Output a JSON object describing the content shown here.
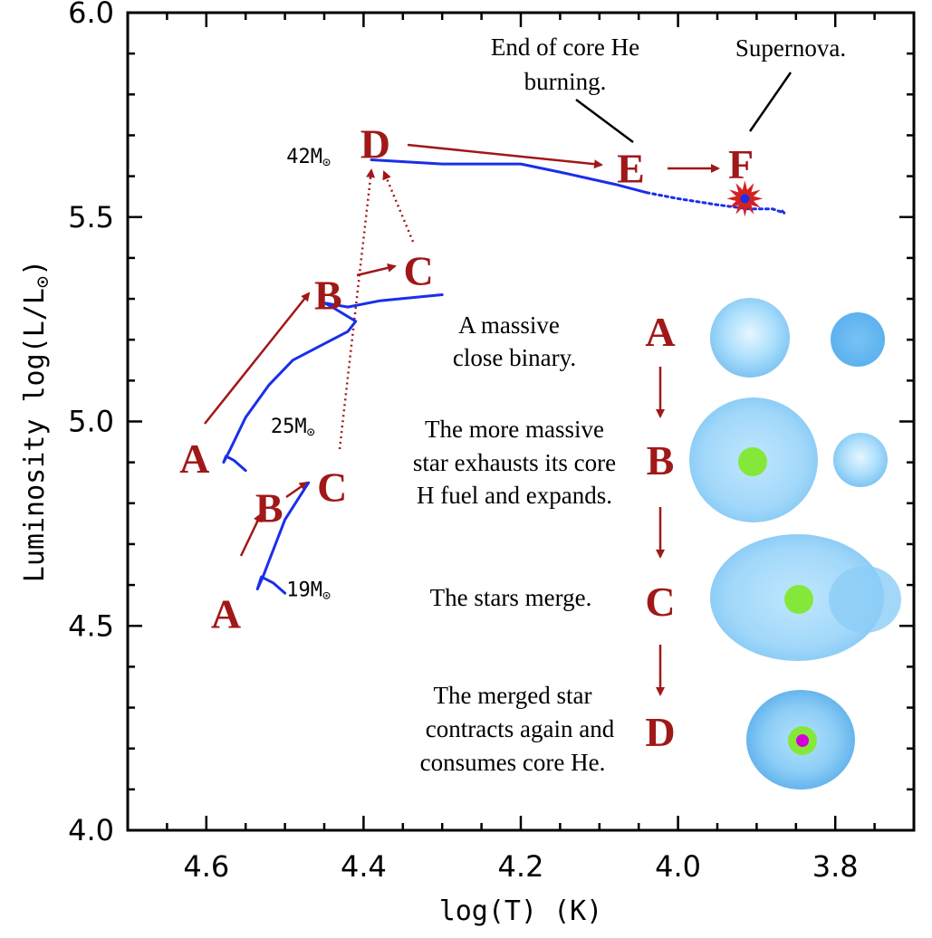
{
  "chart_data": {
    "type": "line",
    "xlabel": "log(T)   (K)",
    "ylabel_main": "Luminosity log(L/L",
    "ylabel_tail": ")",
    "xlim": [
      4.7,
      3.7
    ],
    "ylim": [
      4.0,
      6.0
    ],
    "xticks": [
      {
        "v": 4.6,
        "label": "4.6"
      },
      {
        "v": 4.4,
        "label": "4.4"
      },
      {
        "v": 4.2,
        "label": "4.2"
      },
      {
        "v": 4.0,
        "label": "4.0"
      },
      {
        "v": 3.8,
        "label": "3.8"
      }
    ],
    "yticks": [
      {
        "v": 4.0,
        "label": "4.0"
      },
      {
        "v": 4.5,
        "label": "4.5"
      },
      {
        "v": 5.0,
        "label": "5.0"
      },
      {
        "v": 5.5,
        "label": "5.5"
      },
      {
        "v": 6.0,
        "label": "6.0"
      }
    ],
    "series": [
      {
        "name": "19M track",
        "style": "solid",
        "x": [
          4.5,
          4.515,
          4.53,
          4.535,
          4.528,
          4.52,
          4.5,
          4.47
        ],
        "y": [
          4.58,
          4.605,
          4.62,
          4.59,
          4.62,
          4.66,
          4.76,
          4.85
        ]
      },
      {
        "name": "25M track",
        "style": "solid",
        "x": [
          4.55,
          4.565,
          4.575,
          4.578,
          4.57,
          4.55,
          4.52,
          4.49,
          4.45,
          4.42,
          4.41,
          4.44,
          4.45,
          4.42,
          4.38,
          4.3
        ],
        "y": [
          4.88,
          4.905,
          4.915,
          4.9,
          4.93,
          5.01,
          5.09,
          5.15,
          5.19,
          5.22,
          5.245,
          5.28,
          5.29,
          5.28,
          5.295,
          5.31
        ]
      },
      {
        "name": "42M track",
        "style": "solid",
        "x": [
          4.39,
          4.3,
          4.2,
          4.15,
          4.08,
          4.04
        ],
        "y": [
          5.64,
          5.63,
          5.63,
          5.61,
          5.58,
          5.56
        ]
      },
      {
        "name": "42M track (late)",
        "style": "dotted",
        "x": [
          4.04,
          4.0,
          3.95,
          3.91,
          3.88,
          3.865,
          3.87
        ],
        "y": [
          5.56,
          5.545,
          5.53,
          5.52,
          5.52,
          5.51,
          5.52
        ]
      }
    ],
    "mass_labels": [
      {
        "num": "42M",
        "x": 4.47,
        "y": 5.65
      },
      {
        "num": "25M",
        "x": 4.49,
        "y": 4.99
      },
      {
        "num": "19M",
        "x": 4.47,
        "y": 4.59
      }
    ],
    "points": [
      {
        "label": "A",
        "x": 4.615,
        "y": 4.91
      },
      {
        "label": "B",
        "x": 4.445,
        "y": 5.31
      },
      {
        "label": "C",
        "x": 4.33,
        "y": 5.37
      },
      {
        "label": "D",
        "x": 4.385,
        "y": 5.68
      },
      {
        "label": "E",
        "x": 4.06,
        "y": 5.62
      },
      {
        "label": "F",
        "x": 3.92,
        "y": 5.63
      },
      {
        "label": "A",
        "x": 4.575,
        "y": 4.53
      },
      {
        "label": "B",
        "x": 4.52,
        "y": 4.79
      },
      {
        "label": "C",
        "x": 4.44,
        "y": 4.84
      }
    ],
    "annotations": [
      {
        "text": "End of core He",
        "x": 4.1,
        "y": 5.91
      },
      {
        "text": "burning.",
        "x": 4.1,
        "y": 5.82
      },
      {
        "text": "Supernova.",
        "x": 3.875,
        "y": 5.91
      }
    ],
    "supernova": {
      "x": 3.915,
      "y": 5.545
    }
  },
  "legend": {
    "steps": [
      {
        "letter": "A",
        "lines": [
          "A massive",
          "close binary."
        ]
      },
      {
        "letter": "B",
        "lines": [
          "The more massive",
          "star exhausts its core",
          "H fuel and expands."
        ]
      },
      {
        "letter": "C",
        "lines": [
          "The stars merge."
        ]
      },
      {
        "letter": "D",
        "lines": [
          "The merged star",
          "contracts again and",
          "consumes core He."
        ]
      }
    ]
  },
  "colors": {
    "track": "#1a2fe8",
    "arrow": "#a01818",
    "label": "#a01818",
    "star_light": "#aee0fc",
    "star_mid": "#86caf4",
    "star_dark": "#5cb2ee",
    "core_green": "#84e83a",
    "core_magenta": "#d400d4"
  }
}
